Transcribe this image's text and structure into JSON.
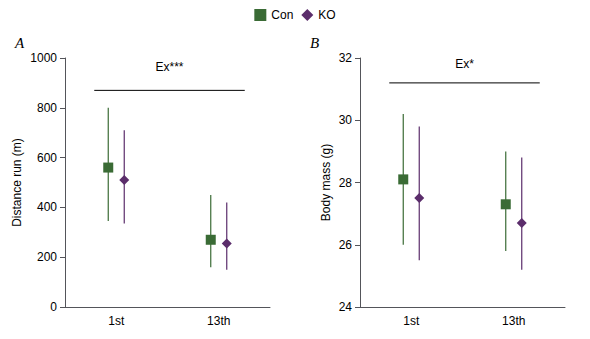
{
  "chart_data": [
    {
      "type": "scatter",
      "title": "A",
      "ylabel": "Distance run (m)",
      "categories": [
        "1st",
        "13th"
      ],
      "series": [
        {
          "name": "Con",
          "color": "#3a6b35",
          "marker": "square",
          "values": [
            560,
            270
          ],
          "error_low": [
            215,
            110
          ],
          "error_high": [
            240,
            180
          ]
        },
        {
          "name": "KO",
          "color": "#5b2d6b",
          "marker": "diamond",
          "values": [
            510,
            255
          ],
          "error_low": [
            175,
            105
          ],
          "error_high": [
            200,
            165
          ]
        }
      ],
      "annotations": [
        {
          "text": "Ex***",
          "y": 940,
          "bracket_y": 870
        }
      ],
      "ylim": [
        0,
        1000
      ],
      "yticks": [
        0,
        200,
        400,
        600,
        800,
        1000
      ],
      "grid": false,
      "legend": "top"
    },
    {
      "type": "scatter",
      "title": "B",
      "ylabel": "Body mass (g)",
      "categories": [
        "1st",
        "13th"
      ],
      "series": [
        {
          "name": "Con",
          "color": "#3a6b35",
          "marker": "square",
          "values": [
            28.1,
            27.3
          ],
          "error_low": [
            2.1,
            1.5
          ],
          "error_high": [
            2.1,
            1.7
          ]
        },
        {
          "name": "KO",
          "color": "#5b2d6b",
          "marker": "diamond",
          "values": [
            27.5,
            26.7
          ],
          "error_low": [
            2.0,
            1.5
          ],
          "error_high": [
            2.3,
            2.1
          ]
        }
      ],
      "annotations": [
        {
          "text": "Ex*",
          "y": 31.6,
          "bracket_y": 31.2
        }
      ],
      "ylim": [
        24,
        32
      ],
      "yticks": [
        24,
        26,
        28,
        30,
        32
      ],
      "grid": false,
      "legend": "top"
    }
  ]
}
